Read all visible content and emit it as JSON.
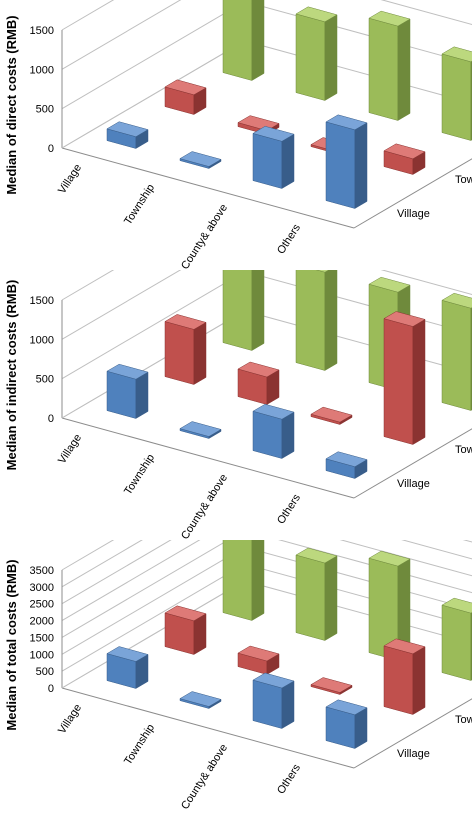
{
  "colors": {
    "series": [
      "#4f81bd",
      "#c0504d",
      "#9bbb59"
    ],
    "series_top": [
      "#7aa4d8",
      "#de7a77",
      "#bcd87e"
    ],
    "series_side": [
      "#385d8a",
      "#8b3331",
      "#6f8a3c"
    ],
    "grid": "#bfbfbf",
    "axis": "#8c8c8c"
  },
  "chart_data": [
    {
      "type": "bar",
      "subtype": "3d-clustered-column",
      "categories": [
        "Village",
        "Township",
        "County& above",
        "Others"
      ],
      "series": [
        {
          "name": "Village",
          "values": [
            150,
            0,
            600,
            1000
          ]
        },
        {
          "name": "Township",
          "values": [
            250,
            50,
            20,
            200
          ]
        },
        {
          "name": "County& above",
          "values": [
            1550,
            1000,
            1200,
            1000
          ]
        }
      ],
      "ylabel": "Median of direct costs (RMB)",
      "yticks": [
        "0",
        "500",
        "1000",
        "1500"
      ],
      "ylim": [
        0,
        1500
      ],
      "grid": true
    },
    {
      "type": "bar",
      "subtype": "3d-clustered-column",
      "categories": [
        "Village",
        "Township",
        "County& above",
        "Others"
      ],
      "series": [
        {
          "name": "Village",
          "values": [
            500,
            0,
            500,
            150
          ]
        },
        {
          "name": "Township",
          "values": [
            700,
            350,
            30,
            1500
          ]
        },
        {
          "name": "County& above",
          "values": [
            1500,
            1250,
            1250,
            1300
          ]
        }
      ],
      "ylabel": "Median of indirect costs (RMB)",
      "yticks": [
        "0",
        "500",
        "1000",
        "1500"
      ],
      "ylim": [
        0,
        1500
      ],
      "grid": true
    },
    {
      "type": "bar",
      "subtype": "3d-clustered-column",
      "categories": [
        "Village",
        "Township",
        "County& above",
        "Others"
      ],
      "series": [
        {
          "name": "Village",
          "values": [
            800,
            0,
            1200,
            1000
          ]
        },
        {
          "name": "Township",
          "values": [
            1000,
            400,
            50,
            1800
          ]
        },
        {
          "name": "County& above",
          "values": [
            3300,
            2300,
            2800,
            2000
          ]
        }
      ],
      "ylabel": "Median of total costs (RMB)",
      "yticks": [
        "0",
        "500",
        "1000",
        "1500",
        "2000",
        "2500",
        "3000",
        "3500"
      ],
      "ylim": [
        0,
        3500
      ],
      "grid": true
    }
  ]
}
